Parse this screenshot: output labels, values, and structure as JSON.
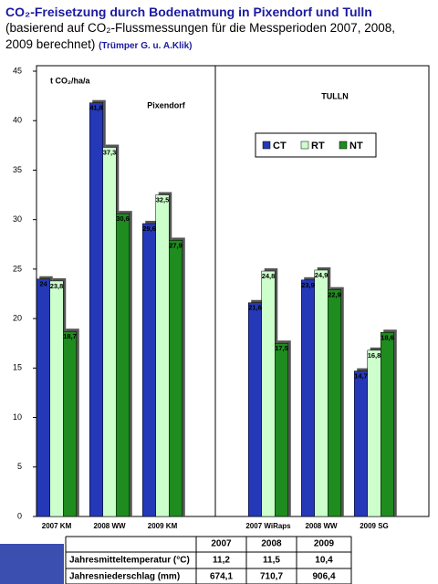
{
  "chart_data": {
    "type": "bar",
    "title": "CO₂-Freisetzung durch Bodenatmung in Pixendorf und Tulln",
    "subtitle": "(basierend auf CO₂-Flussmessungen für die Messperioden 2007, 2008, 2009 berechnet)",
    "source": "(Trümper G. u. A.Klik)",
    "y_label": "t CO₂/ha/a",
    "annotations": [
      "Pixendorf",
      "TULLN"
    ],
    "categories": [
      "2007 KM",
      "2008 WW",
      "2009 KM",
      null,
      "2007 WiRaps",
      "2008 WW",
      "2009 SG"
    ],
    "series": [
      {
        "name": "CT",
        "color": "#2438b8",
        "values": [
          24,
          41.8,
          29.6,
          null,
          21.6,
          23.9,
          14.7
        ],
        "value_labels": [
          "24",
          "41,8",
          "29,6",
          null,
          "21,6",
          "23,9",
          "14,7"
        ]
      },
      {
        "name": "RT",
        "color": "#ccffcc",
        "values": [
          23.8,
          37.3,
          32.5,
          null,
          24.8,
          24.9,
          16.8
        ],
        "value_labels": [
          "23,8",
          "37,3",
          "32,5",
          null,
          "24,8",
          "24,9",
          "16,8"
        ]
      },
      {
        "name": "NT",
        "color": "#1e8c1e",
        "values": [
          18.7,
          30.6,
          27.9,
          null,
          17.5,
          22.9,
          18.6
        ],
        "value_labels": [
          "18,7",
          "30,6",
          "27,9",
          null,
          "17,5",
          "22,9",
          "18,6"
        ]
      }
    ],
    "ylim": [
      0,
      45
    ],
    "yticks": [
      0,
      5,
      10,
      15,
      20,
      25,
      30,
      35,
      40,
      45
    ],
    "grid": false,
    "legend": "upper right"
  },
  "table": {
    "header": [
      "2007",
      "2008",
      "2009"
    ],
    "rows": [
      [
        "Jahresmitteltemperatur (°C)",
        "11,2",
        "11,5",
        "10,4"
      ],
      [
        "Jahresniederschlag (mm)",
        "674,1",
        "710,7",
        "906,4"
      ]
    ]
  }
}
